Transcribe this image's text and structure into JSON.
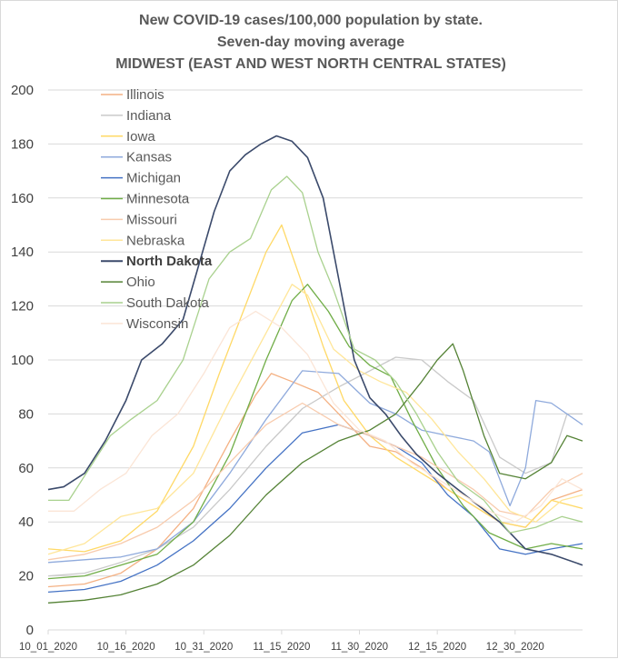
{
  "chart_data": {
    "type": "line",
    "title": [
      "New COVID-19 cases/100,000 population by state.",
      "Seven-day moving average",
      "MIDWEST (EAST AND WEST NORTH CENTRAL STATES)"
    ],
    "xlabel": "",
    "ylabel": "",
    "ylim": [
      0,
      200
    ],
    "yticks": [
      0,
      20,
      40,
      60,
      80,
      100,
      120,
      140,
      160,
      180,
      200
    ],
    "x_start": "2020-10-01",
    "x_end": "2021-01-12",
    "xtick_labels": [
      "10_01_2020",
      "10_16_2020",
      "10_31_2020",
      "11_15_2020",
      "11_30_2020",
      "12_15_2020",
      "12_30_2020"
    ],
    "grid": "horizontal",
    "legend_position": "top-left",
    "series": [
      {
        "name": "Illinois",
        "color": "#f4b183",
        "bold": false,
        "points": [
          [
            "2020-10-01",
            16
          ],
          [
            "2020-10-08",
            17
          ],
          [
            "2020-10-15",
            21
          ],
          [
            "2020-10-22",
            30
          ],
          [
            "2020-10-29",
            45
          ],
          [
            "2020-11-05",
            70
          ],
          [
            "2020-11-10",
            87
          ],
          [
            "2020-11-13",
            95
          ],
          [
            "2020-11-17",
            92
          ],
          [
            "2020-11-22",
            88
          ],
          [
            "2020-11-27",
            78
          ],
          [
            "2020-12-02",
            68
          ],
          [
            "2020-12-07",
            66
          ],
          [
            "2020-12-12",
            60
          ],
          [
            "2020-12-17",
            52
          ],
          [
            "2020-12-22",
            46
          ],
          [
            "2020-12-27",
            40
          ],
          [
            "2021-01-01",
            38
          ],
          [
            "2021-01-06",
            48
          ],
          [
            "2021-01-12",
            52
          ]
        ]
      },
      {
        "name": "Indiana",
        "color": "#c9c9c9",
        "bold": false,
        "points": [
          [
            "2020-10-01",
            20
          ],
          [
            "2020-10-08",
            21
          ],
          [
            "2020-10-15",
            25
          ],
          [
            "2020-10-22",
            30
          ],
          [
            "2020-10-29",
            38
          ],
          [
            "2020-11-05",
            52
          ],
          [
            "2020-11-12",
            68
          ],
          [
            "2020-11-19",
            82
          ],
          [
            "2020-11-26",
            90
          ],
          [
            "2020-12-02",
            96
          ],
          [
            "2020-12-07",
            101
          ],
          [
            "2020-12-12",
            100
          ],
          [
            "2020-12-17",
            92
          ],
          [
            "2020-12-22",
            85
          ],
          [
            "2020-12-27",
            64
          ],
          [
            "2021-01-01",
            58
          ],
          [
            "2021-01-06",
            62
          ],
          [
            "2021-01-09",
            80
          ],
          [
            "2021-01-12",
            80
          ]
        ]
      },
      {
        "name": "Iowa",
        "color": "#ffd966",
        "bold": false,
        "points": [
          [
            "2020-10-01",
            30
          ],
          [
            "2020-10-08",
            29
          ],
          [
            "2020-10-15",
            33
          ],
          [
            "2020-10-22",
            44
          ],
          [
            "2020-10-29",
            68
          ],
          [
            "2020-11-03",
            95
          ],
          [
            "2020-11-08",
            120
          ],
          [
            "2020-11-12",
            140
          ],
          [
            "2020-11-15",
            150
          ],
          [
            "2020-11-19",
            128
          ],
          [
            "2020-11-23",
            105
          ],
          [
            "2020-11-27",
            85
          ],
          [
            "2020-12-02",
            72
          ],
          [
            "2020-12-07",
            64
          ],
          [
            "2020-12-12",
            58
          ],
          [
            "2020-12-17",
            52
          ],
          [
            "2020-12-22",
            46
          ],
          [
            "2020-12-27",
            40
          ],
          [
            "2021-01-01",
            38
          ],
          [
            "2021-01-06",
            48
          ],
          [
            "2021-01-12",
            45
          ]
        ]
      },
      {
        "name": "Kansas",
        "color": "#8faadc",
        "bold": false,
        "points": [
          [
            "2020-10-01",
            25
          ],
          [
            "2020-10-08",
            26
          ],
          [
            "2020-10-15",
            27
          ],
          [
            "2020-10-22",
            30
          ],
          [
            "2020-10-29",
            40
          ],
          [
            "2020-11-05",
            58
          ],
          [
            "2020-11-12",
            78
          ],
          [
            "2020-11-19",
            96
          ],
          [
            "2020-11-26",
            95
          ],
          [
            "2020-12-02",
            84
          ],
          [
            "2020-12-07",
            80
          ],
          [
            "2020-12-12",
            74
          ],
          [
            "2020-12-17",
            72
          ],
          [
            "2020-12-22",
            70
          ],
          [
            "2020-12-25",
            66
          ],
          [
            "2020-12-29",
            46
          ],
          [
            "2021-01-01",
            60
          ],
          [
            "2021-01-03",
            85
          ],
          [
            "2021-01-06",
            84
          ],
          [
            "2021-01-12",
            76
          ]
        ]
      },
      {
        "name": "Michigan",
        "color": "#4472c4",
        "bold": false,
        "points": [
          [
            "2020-10-01",
            14
          ],
          [
            "2020-10-08",
            15
          ],
          [
            "2020-10-15",
            18
          ],
          [
            "2020-10-22",
            24
          ],
          [
            "2020-10-29",
            33
          ],
          [
            "2020-11-05",
            45
          ],
          [
            "2020-11-12",
            60
          ],
          [
            "2020-11-19",
            73
          ],
          [
            "2020-11-26",
            76
          ],
          [
            "2020-12-02",
            72
          ],
          [
            "2020-12-07",
            68
          ],
          [
            "2020-12-12",
            62
          ],
          [
            "2020-12-17",
            50
          ],
          [
            "2020-12-22",
            42
          ],
          [
            "2020-12-27",
            30
          ],
          [
            "2021-01-01",
            28
          ],
          [
            "2021-01-06",
            30
          ],
          [
            "2021-01-12",
            32
          ]
        ]
      },
      {
        "name": "Minnesota",
        "color": "#70ad47",
        "bold": false,
        "points": [
          [
            "2020-10-01",
            19
          ],
          [
            "2020-10-08",
            20
          ],
          [
            "2020-10-15",
            24
          ],
          [
            "2020-10-22",
            28
          ],
          [
            "2020-10-29",
            40
          ],
          [
            "2020-11-05",
            65
          ],
          [
            "2020-11-12",
            100
          ],
          [
            "2020-11-17",
            122
          ],
          [
            "2020-11-20",
            128
          ],
          [
            "2020-11-24",
            118
          ],
          [
            "2020-11-28",
            105
          ],
          [
            "2020-12-02",
            98
          ],
          [
            "2020-12-06",
            94
          ],
          [
            "2020-12-10",
            78
          ],
          [
            "2020-12-15",
            60
          ],
          [
            "2020-12-20",
            46
          ],
          [
            "2020-12-25",
            36
          ],
          [
            "2021-01-01",
            30
          ],
          [
            "2021-01-06",
            32
          ],
          [
            "2021-01-12",
            30
          ]
        ]
      },
      {
        "name": "Missouri",
        "color": "#f8cbad",
        "bold": false,
        "points": [
          [
            "2020-10-01",
            26
          ],
          [
            "2020-10-08",
            28
          ],
          [
            "2020-10-15",
            32
          ],
          [
            "2020-10-22",
            38
          ],
          [
            "2020-10-29",
            48
          ],
          [
            "2020-11-05",
            62
          ],
          [
            "2020-11-12",
            76
          ],
          [
            "2020-11-19",
            84
          ],
          [
            "2020-11-26",
            76
          ],
          [
            "2020-12-02",
            72
          ],
          [
            "2020-12-07",
            68
          ],
          [
            "2020-12-12",
            64
          ],
          [
            "2020-12-17",
            58
          ],
          [
            "2020-12-22",
            52
          ],
          [
            "2020-12-27",
            44
          ],
          [
            "2021-01-01",
            42
          ],
          [
            "2021-01-06",
            52
          ],
          [
            "2021-01-12",
            58
          ]
        ]
      },
      {
        "name": "Nebraska",
        "color": "#ffe699",
        "bold": false,
        "points": [
          [
            "2020-10-01",
            28
          ],
          [
            "2020-10-08",
            32
          ],
          [
            "2020-10-15",
            42
          ],
          [
            "2020-10-22",
            45
          ],
          [
            "2020-10-29",
            58
          ],
          [
            "2020-11-05",
            85
          ],
          [
            "2020-11-12",
            110
          ],
          [
            "2020-11-17",
            128
          ],
          [
            "2020-11-20",
            124
          ],
          [
            "2020-11-25",
            104
          ],
          [
            "2020-11-30",
            96
          ],
          [
            "2020-12-04",
            92
          ],
          [
            "2020-12-09",
            88
          ],
          [
            "2020-12-14",
            78
          ],
          [
            "2020-12-19",
            66
          ],
          [
            "2020-12-24",
            56
          ],
          [
            "2020-12-29",
            44
          ],
          [
            "2021-01-03",
            40
          ],
          [
            "2021-01-08",
            48
          ],
          [
            "2021-01-12",
            50
          ]
        ]
      },
      {
        "name": "North Dakota",
        "color": "#3b4a6b",
        "bold": true,
        "points": [
          [
            "2020-10-01",
            52
          ],
          [
            "2020-10-04",
            53
          ],
          [
            "2020-10-08",
            58
          ],
          [
            "2020-10-12",
            70
          ],
          [
            "2020-10-16",
            85
          ],
          [
            "2020-10-19",
            100
          ],
          [
            "2020-10-23",
            106
          ],
          [
            "2020-10-27",
            115
          ],
          [
            "2020-10-30",
            135
          ],
          [
            "2020-11-02",
            155
          ],
          [
            "2020-11-05",
            170
          ],
          [
            "2020-11-08",
            176
          ],
          [
            "2020-11-11",
            180
          ],
          [
            "2020-11-14",
            183
          ],
          [
            "2020-11-17",
            181
          ],
          [
            "2020-11-20",
            175
          ],
          [
            "2020-11-23",
            160
          ],
          [
            "2020-11-26",
            130
          ],
          [
            "2020-11-29",
            100
          ],
          [
            "2020-12-02",
            86
          ],
          [
            "2020-12-05",
            80
          ],
          [
            "2020-12-08",
            72
          ],
          [
            "2020-12-11",
            65
          ],
          [
            "2020-12-15",
            58
          ],
          [
            "2020-12-19",
            52
          ],
          [
            "2020-12-23",
            46
          ],
          [
            "2020-12-27",
            40
          ],
          [
            "2021-01-01",
            30
          ],
          [
            "2021-01-06",
            28
          ],
          [
            "2021-01-12",
            24
          ]
        ]
      },
      {
        "name": "Ohio",
        "color": "#548235",
        "bold": false,
        "points": [
          [
            "2020-10-01",
            10
          ],
          [
            "2020-10-08",
            11
          ],
          [
            "2020-10-15",
            13
          ],
          [
            "2020-10-22",
            17
          ],
          [
            "2020-10-29",
            24
          ],
          [
            "2020-11-05",
            35
          ],
          [
            "2020-11-12",
            50
          ],
          [
            "2020-11-19",
            62
          ],
          [
            "2020-11-26",
            70
          ],
          [
            "2020-12-02",
            74
          ],
          [
            "2020-12-07",
            80
          ],
          [
            "2020-12-12",
            92
          ],
          [
            "2020-12-15",
            100
          ],
          [
            "2020-12-18",
            106
          ],
          [
            "2020-12-20",
            96
          ],
          [
            "2020-12-24",
            72
          ],
          [
            "2020-12-27",
            58
          ],
          [
            "2021-01-01",
            56
          ],
          [
            "2021-01-06",
            62
          ],
          [
            "2021-01-09",
            72
          ],
          [
            "2021-01-12",
            70
          ]
        ]
      },
      {
        "name": "South Dakota",
        "color": "#a9d18e",
        "bold": false,
        "points": [
          [
            "2020-10-01",
            48
          ],
          [
            "2020-10-05",
            48
          ],
          [
            "2020-10-09",
            60
          ],
          [
            "2020-10-13",
            72
          ],
          [
            "2020-10-17",
            78
          ],
          [
            "2020-10-22",
            85
          ],
          [
            "2020-10-27",
            100
          ],
          [
            "2020-11-01",
            130
          ],
          [
            "2020-11-05",
            140
          ],
          [
            "2020-11-09",
            145
          ],
          [
            "2020-11-13",
            163
          ],
          [
            "2020-11-16",
            168
          ],
          [
            "2020-11-19",
            162
          ],
          [
            "2020-11-22",
            140
          ],
          [
            "2020-11-25",
            126
          ],
          [
            "2020-11-29",
            104
          ],
          [
            "2020-12-03",
            100
          ],
          [
            "2020-12-07",
            92
          ],
          [
            "2020-12-11",
            80
          ],
          [
            "2020-12-15",
            66
          ],
          [
            "2020-12-19",
            55
          ],
          [
            "2020-12-24",
            48
          ],
          [
            "2020-12-29",
            36
          ],
          [
            "2021-01-03",
            38
          ],
          [
            "2021-01-08",
            42
          ],
          [
            "2021-01-12",
            40
          ]
        ]
      },
      {
        "name": "Wisconsin",
        "color": "#fbe5d6",
        "bold": false,
        "points": [
          [
            "2020-10-01",
            44
          ],
          [
            "2020-10-06",
            44
          ],
          [
            "2020-10-11",
            52
          ],
          [
            "2020-10-16",
            58
          ],
          [
            "2020-10-21",
            72
          ],
          [
            "2020-10-26",
            80
          ],
          [
            "2020-10-31",
            95
          ],
          [
            "2020-11-05",
            112
          ],
          [
            "2020-11-10",
            118
          ],
          [
            "2020-11-15",
            112
          ],
          [
            "2020-11-20",
            102
          ],
          [
            "2020-11-25",
            84
          ],
          [
            "2020-11-30",
            74
          ],
          [
            "2020-12-05",
            70
          ],
          [
            "2020-12-10",
            62
          ],
          [
            "2020-12-15",
            56
          ],
          [
            "2020-12-20",
            50
          ],
          [
            "2020-12-25",
            44
          ],
          [
            "2020-12-30",
            40
          ],
          [
            "2021-01-04",
            46
          ],
          [
            "2021-01-08",
            56
          ],
          [
            "2021-01-12",
            52
          ]
        ]
      }
    ]
  }
}
